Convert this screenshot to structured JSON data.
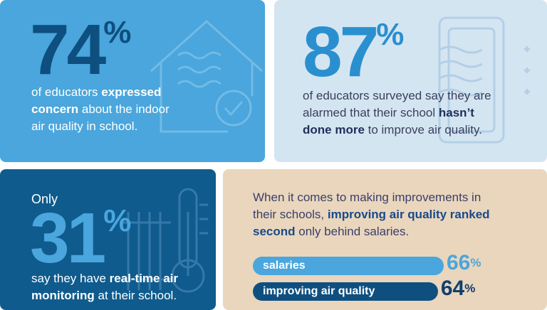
{
  "panels": [
    {
      "stat": {
        "number": "74",
        "unit": "%"
      },
      "body": [
        [
          {
            "text": "of educators ",
            "bold": false
          },
          {
            "text": "expressed",
            "bold": true
          }
        ],
        [
          {
            "text": "concern",
            "bold": true
          },
          {
            "text": " about the indoor",
            "bold": false
          }
        ],
        [
          {
            "text": "air quality in school.",
            "bold": false
          }
        ]
      ]
    },
    {
      "stat": {
        "number": "87",
        "unit": "%"
      },
      "body": [
        [
          {
            "text": "of educators surveyed say they are",
            "bold": false
          }
        ],
        [
          {
            "text": "alarmed that their school ",
            "bold": false
          },
          {
            "text": "hasn’t",
            "bold": true
          }
        ],
        [
          {
            "text": "done more",
            "bold": true
          },
          {
            "text": " to improve air quality.",
            "bold": false
          }
        ]
      ]
    },
    {
      "intro": "Only",
      "stat": {
        "number": "31",
        "unit": "%"
      },
      "body": [
        [
          {
            "text": "say they have ",
            "bold": false
          },
          {
            "text": "real-time air",
            "bold": true
          }
        ],
        [
          {
            "text": "monitoring",
            "bold": true
          },
          {
            "text": " at their school.",
            "bold": false
          }
        ]
      ]
    },
    {
      "body": [
        [
          {
            "text": "When it comes to making improvements in",
            "bold": false
          }
        ],
        [
          {
            "text": "their schools, ",
            "bold": false
          },
          {
            "text": "improving air quality ranked",
            "bold": true
          }
        ],
        [
          {
            "text": "second",
            "bold": true
          },
          {
            "text": " only behind salaries.",
            "bold": false
          }
        ]
      ],
      "bars": [
        {
          "label": "salaries",
          "value": 66,
          "value_label": "66%"
        },
        {
          "label": "improving air quality",
          "value": 64,
          "value_label": "64%"
        }
      ]
    }
  ]
}
